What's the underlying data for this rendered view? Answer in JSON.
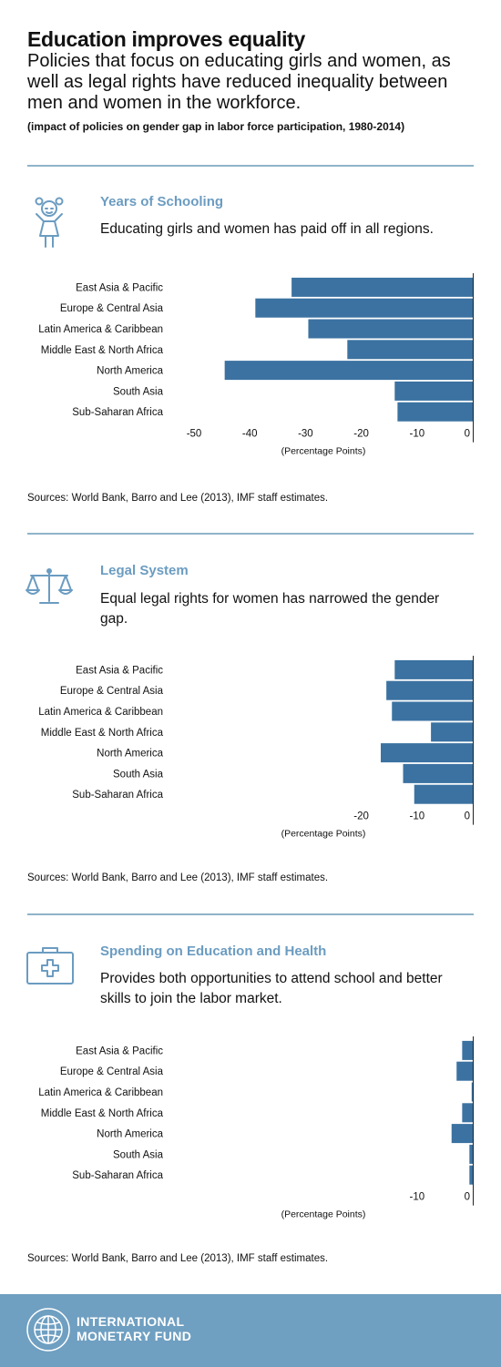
{
  "header": {
    "title": "Education improves equality",
    "subtitle": "Policies that focus on educating girls and women, as well as legal rights have reduced inequality between men and women in the workforce.",
    "note": "(impact of policies on gender gap in labor force participation, 1980-2014)"
  },
  "colors": {
    "bar": "#3b72a1",
    "accent": "#6b9cc1",
    "divider": "#8fb3c9",
    "footer": "#6f9fc1"
  },
  "sections": [
    {
      "heading": "Years of Schooling",
      "description": "Educating girls and women has paid off in all regions.",
      "icon": "girl-icon",
      "source": "Sources: World Bank, Barro and Lee (2013), IMF staff estimates."
    },
    {
      "heading": "Legal System",
      "description": "Equal legal rights for women has narrowed the gender gap.",
      "icon": "scales-icon",
      "source": "Sources: World Bank, Barro and Lee (2013), IMF staff estimates."
    },
    {
      "heading": "Spending on Education and Health",
      "description": "Provides both opportunities to attend school and better skills to join the labor market.",
      "icon": "first-aid-kit-icon",
      "source": "Sources: World Bank, Barro and Lee (2013), IMF staff estimates."
    }
  ],
  "chart_data": [
    {
      "type": "bar",
      "orientation": "horizontal",
      "categories": [
        "East Asia & Pacific",
        "Europe & Central Asia",
        "Latin America & Caribbean",
        "Middle East & North Africa",
        "North America",
        "South Asia",
        "Sub-Saharan Africa"
      ],
      "values": [
        -32.5,
        -39,
        -29.5,
        -22.5,
        -44.5,
        -14,
        -13.5
      ],
      "xlabel": "(Percentage Points)",
      "xlim": [
        -50,
        0
      ],
      "xticks": [
        -50,
        -40,
        -30,
        -20,
        -10,
        0
      ]
    },
    {
      "type": "bar",
      "orientation": "horizontal",
      "categories": [
        "East Asia & Pacific",
        "Europe & Central Asia",
        "Latin America & Caribbean",
        "Middle East & North Africa",
        "North America",
        "South Asia",
        "Sub-Saharan Africa"
      ],
      "values": [
        -14,
        -15.5,
        -14.5,
        -7.5,
        -16.5,
        -12.5,
        -10.5
      ],
      "xlabel": "(Percentage Points)",
      "xlim": [
        -20,
        0
      ],
      "xticks": [
        -20,
        -10,
        0
      ]
    },
    {
      "type": "bar",
      "orientation": "horizontal",
      "categories": [
        "East Asia & Pacific",
        "Europe & Central Asia",
        "Latin America & Caribbean",
        "Middle East & North Africa",
        "North America",
        "South Asia",
        "Sub-Saharan Africa"
      ],
      "values": [
        -1.9,
        -2.9,
        -0.2,
        -1.9,
        -3.8,
        -0.6,
        -0.6
      ],
      "xlabel": "(Percentage Points)",
      "xlim": [
        -10,
        0
      ],
      "xticks": [
        -10,
        0
      ]
    }
  ],
  "footer": {
    "org_name": "INTERNATIONAL MONETARY FUND",
    "logo_icon": "imf-seal-icon"
  }
}
